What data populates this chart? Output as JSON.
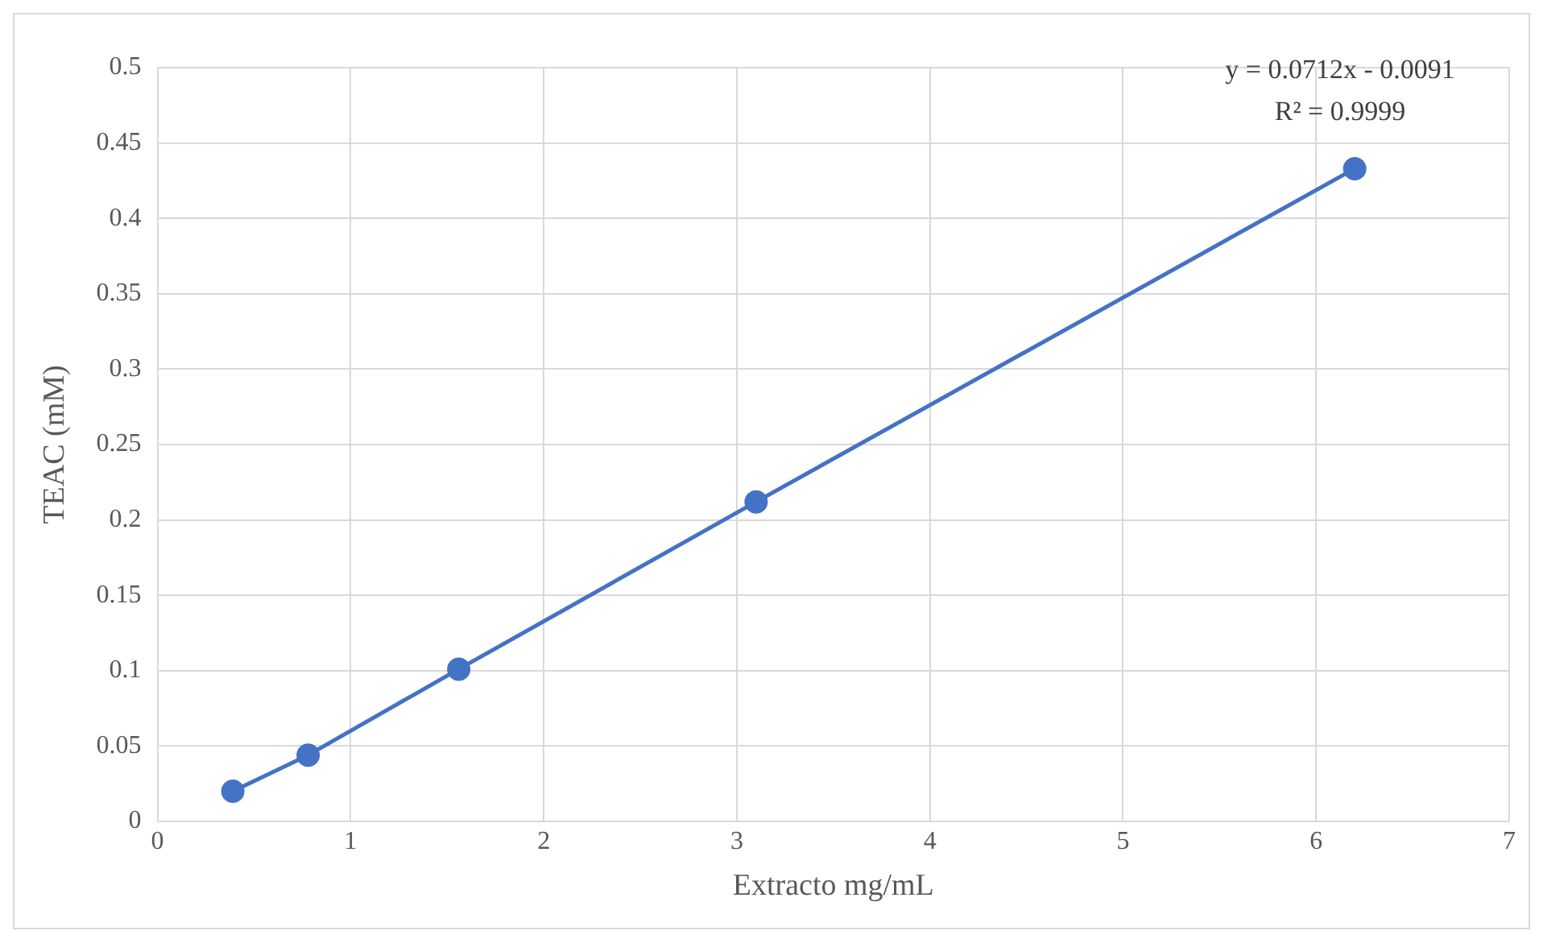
{
  "chart_data": {
    "type": "line",
    "xlabel": "Extracto mg/mL",
    "ylabel": "TEAC (mM)",
    "x": [
      0.39,
      0.78,
      1.56,
      3.1,
      6.2
    ],
    "series": [
      {
        "color": "#4472c4",
        "values": [
          0.02,
          0.044,
          0.101,
          0.212,
          0.433
        ]
      }
    ],
    "xlim": [
      0,
      7
    ],
    "xticks": [
      0,
      1,
      2,
      3,
      4,
      5,
      6,
      7
    ],
    "ylim": [
      0,
      0.5
    ],
    "yticks": [
      0,
      0.05,
      0.1,
      0.15,
      0.2,
      0.25,
      0.3,
      0.35,
      0.4,
      0.45,
      0.5
    ],
    "annotations": [
      "y = 0.0712x - 0.0091",
      "R² = 0.9999"
    ],
    "grid": true,
    "marker": "circle",
    "line_style": "solid"
  }
}
